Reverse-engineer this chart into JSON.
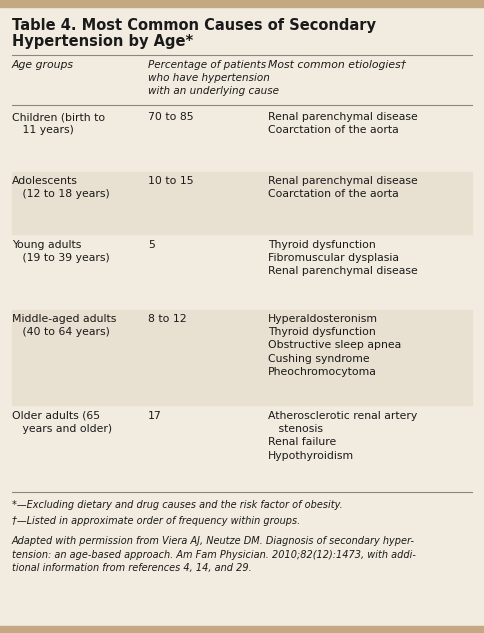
{
  "title_line1": "Table 4. Most Common Causes of Secondary",
  "title_line2": "Hypertension by Age*",
  "bg_color": "#f2ece0",
  "top_bar_color": "#c4a882",
  "bottom_bar_color": "#c4a882",
  "header_col1": "Age groups",
  "header_col2": "Percentage of patients\nwho have hypertension\nwith an underlying cause",
  "header_col3": "Most common etiologies†",
  "rows": [
    {
      "col1": "Children (birth to\n   11 years)",
      "col2": "70 to 85",
      "col3": "Renal parenchymal disease\nCoarctation of the aorta"
    },
    {
      "col1": "Adolescents\n   (12 to 18 years)",
      "col2": "10 to 15",
      "col3": "Renal parenchymal disease\nCoarctation of the aorta"
    },
    {
      "col1": "Young adults\n   (19 to 39 years)",
      "col2": "5",
      "col3": "Thyroid dysfunction\nFibromuscular dysplasia\nRenal parenchymal disease"
    },
    {
      "col1": "Middle-aged adults\n   (40 to 64 years)",
      "col2": "8 to 12",
      "col3": "Hyperaldosteronism\nThyroid dysfunction\nObstructive sleep apnea\nCushing syndrome\nPheochromocytoma"
    },
    {
      "col1": "Older adults (65\n   years and older)",
      "col2": "17",
      "col3": "Atherosclerotic renal artery\n   stenosis\nRenal failure\nHypothyroidism"
    }
  ],
  "row_shade_color": "#e8e0d0",
  "footnote1": "*—Excluding dietary and drug causes and the risk factor of obesity.",
  "footnote2": "†—Listed in approximate order of frequency within groups.",
  "footnote3": "Adapted with permission from Viera AJ, Neutze DM. Diagnosis of secondary hyper-\ntension: an age-based approach. Am Fam Physician. 2010;82(12):1473, with addi-\ntional information from references 4, 14, and 29.",
  "text_color": "#1a1a1a",
  "line_color": "#888880"
}
